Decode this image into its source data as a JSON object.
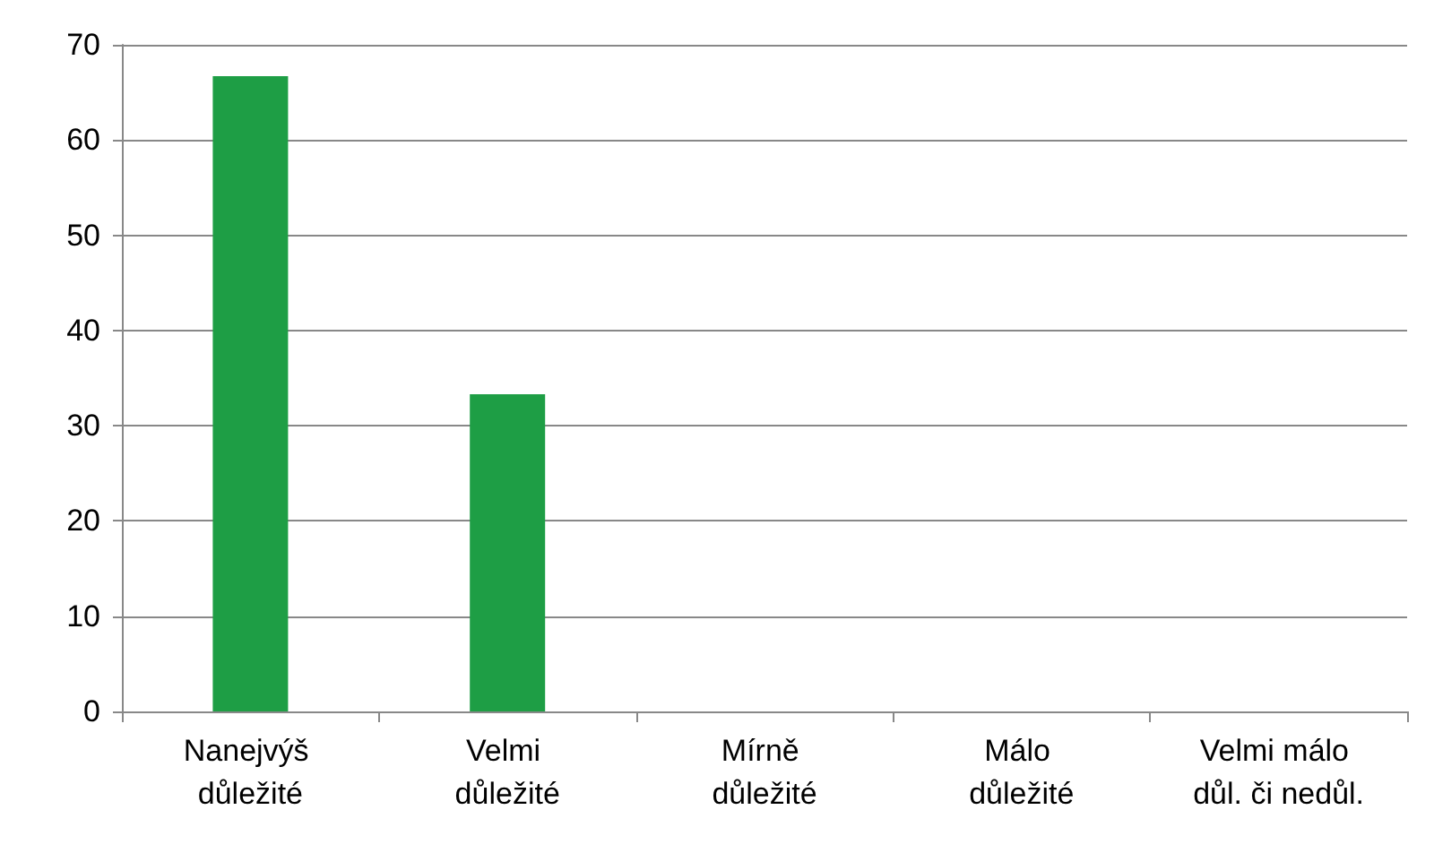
{
  "chart_data": {
    "type": "bar",
    "categories": [
      "Nanejvýš důležité",
      "Velmi důležité",
      "Mírně důležité",
      "Málo důležité",
      "Velmi málo důl. či nedůl."
    ],
    "values": [
      66.7,
      33.3,
      0,
      0,
      0
    ],
    "color": "#1e9e45",
    "ylim": [
      0,
      70
    ],
    "yticks": [
      0,
      10,
      20,
      30,
      40,
      50,
      60,
      70
    ],
    "grid": "y"
  }
}
